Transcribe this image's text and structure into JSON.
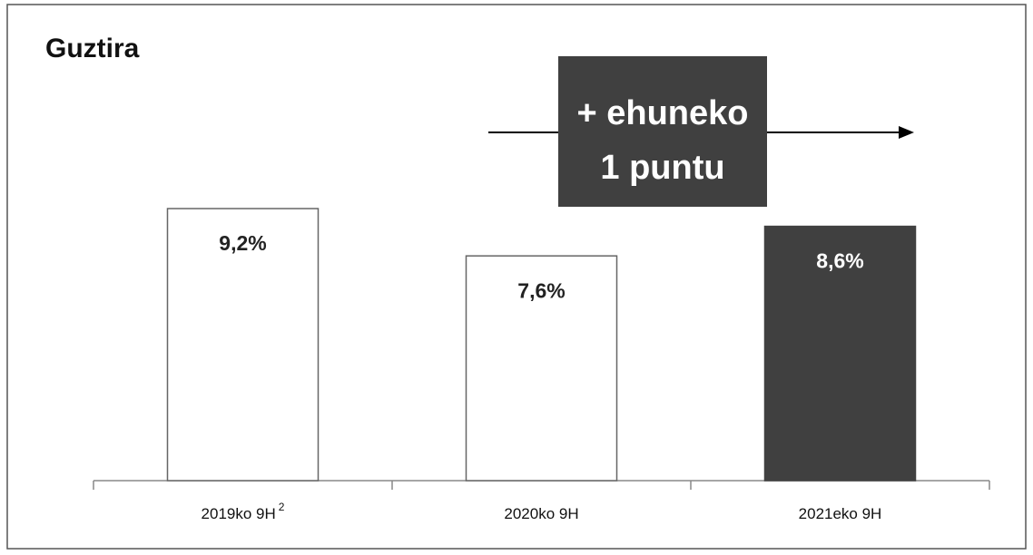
{
  "chart_data": {
    "type": "bar",
    "title": "Guztira",
    "categories": [
      "2019ko 9H",
      "2020ko 9H",
      "2021eko 9H"
    ],
    "category_superscripts": [
      "2",
      null,
      null
    ],
    "values": [
      9.2,
      7.6,
      8.6
    ],
    "value_labels": [
      "9,2%",
      "7,6%",
      "8,6%"
    ],
    "colors": [
      "#ffffff",
      "#ffffff",
      "#404040"
    ],
    "annotation": [
      "+ ehuneko",
      "1 puntu"
    ]
  }
}
